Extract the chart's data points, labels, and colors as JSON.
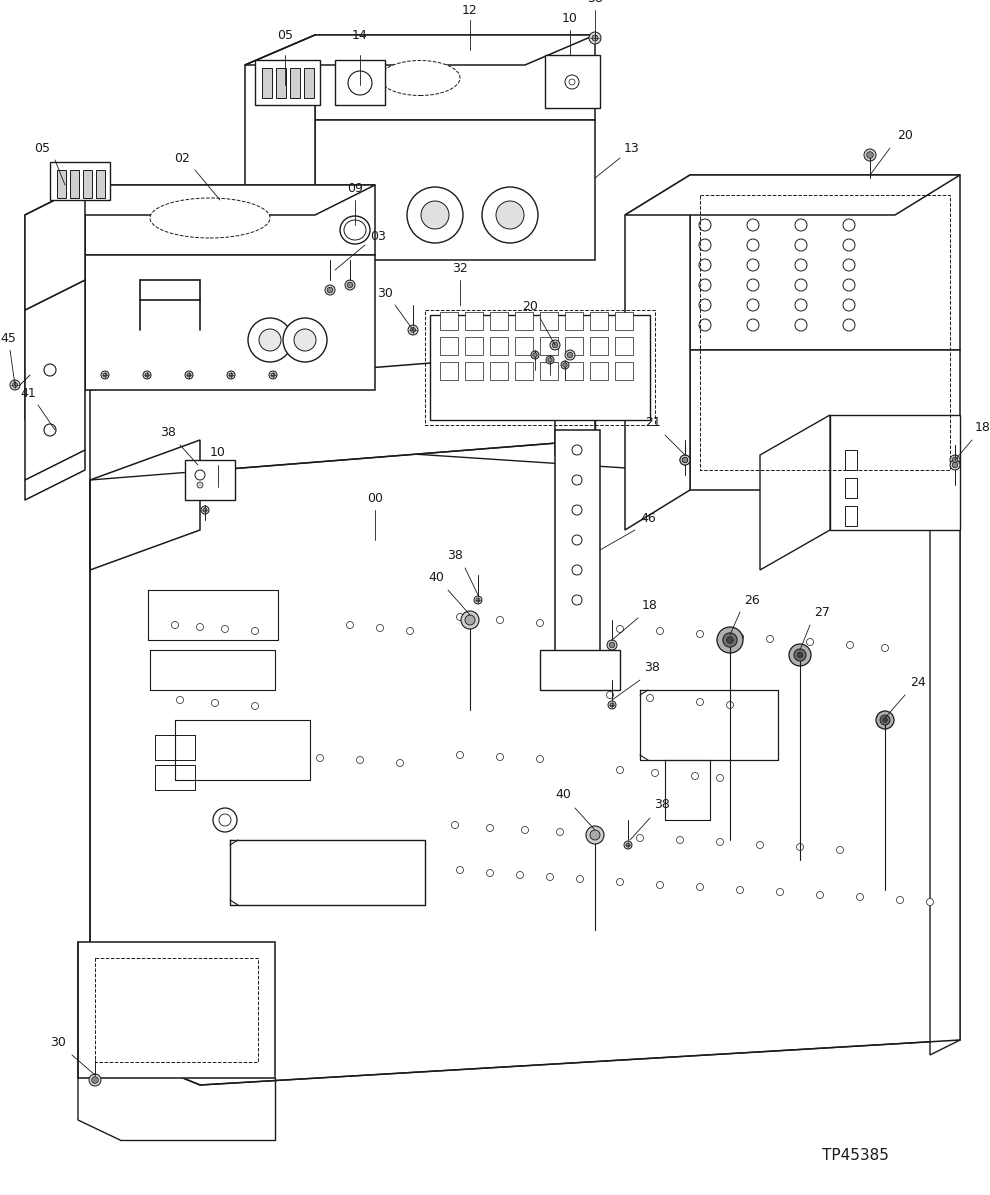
{
  "bg_color": "#ffffff",
  "line_color": "#1a1a1a",
  "text_color": "#1a1a1a",
  "watermark": "TP45385",
  "fig_width": 9.9,
  "fig_height": 11.95,
  "dpi": 100
}
